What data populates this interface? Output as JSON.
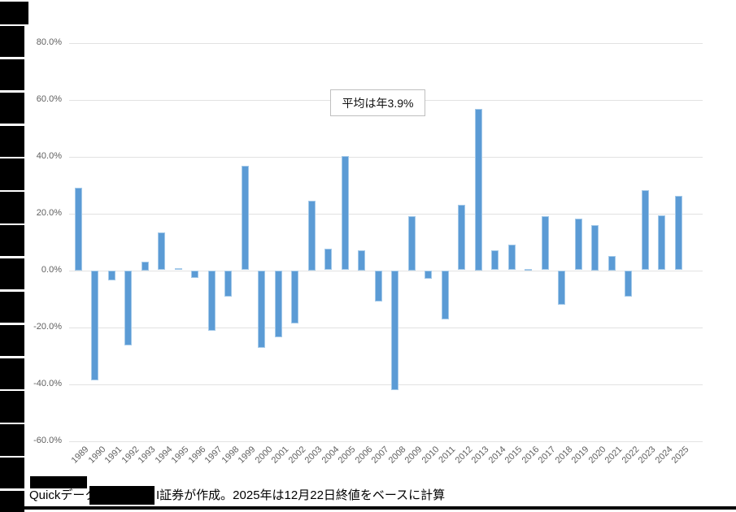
{
  "chart_data": {
    "type": "bar",
    "title": "",
    "xlabel": "",
    "ylabel": "",
    "categories": [
      "1989",
      "1990",
      "1991",
      "1992",
      "1993",
      "1994",
      "1995",
      "1996",
      "1997",
      "1998",
      "1999",
      "2000",
      "2001",
      "2002",
      "2003",
      "2004",
      "2005",
      "2006",
      "2007",
      "2008",
      "2009",
      "2010",
      "2011",
      "2012",
      "2013",
      "2014",
      "2015",
      "2016",
      "2017",
      "2018",
      "2019",
      "2020",
      "2021",
      "2022",
      "2023",
      "2024",
      "2025"
    ],
    "values": [
      29.0,
      -38.7,
      -3.6,
      -26.4,
      2.9,
      13.2,
      0.7,
      -2.6,
      -21.2,
      -9.3,
      36.8,
      -27.2,
      -23.5,
      -18.6,
      24.5,
      7.6,
      40.2,
      6.9,
      -11.1,
      -42.1,
      19.0,
      -3.0,
      -17.3,
      22.9,
      56.7,
      7.1,
      9.1,
      0.4,
      19.1,
      -12.1,
      18.2,
      16.0,
      4.9,
      -9.4,
      28.2,
      19.2,
      26.1
    ],
    "ylim": [
      -60,
      80
    ],
    "yticks": [
      {
        "v": 80,
        "label": "80.0%"
      },
      {
        "v": 60,
        "label": "60.0%"
      },
      {
        "v": 40,
        "label": "40.0%"
      },
      {
        "v": 20,
        "label": "20.0%"
      },
      {
        "v": 0,
        "label": "0.0%"
      },
      {
        "v": -20,
        "label": "-20.0%"
      },
      {
        "v": -40,
        "label": "-40.0%"
      },
      {
        "v": -60,
        "label": "-60.0%"
      }
    ],
    "grid": true,
    "legend_position": "none",
    "annotation": "平均は年3.9%",
    "bar_color": "#5B9BD5",
    "bar_border_color": "#A3C9E9",
    "gridline_color": "#E2E2E2",
    "axis_text_color": "#606060",
    "annotation_border_color": "#BFBFBF",
    "redaction_color": "#000000"
  },
  "footer": {
    "left": "Quickデータ",
    "right": "I証券が作成。2025年は12月22日終値をベースに計算"
  }
}
